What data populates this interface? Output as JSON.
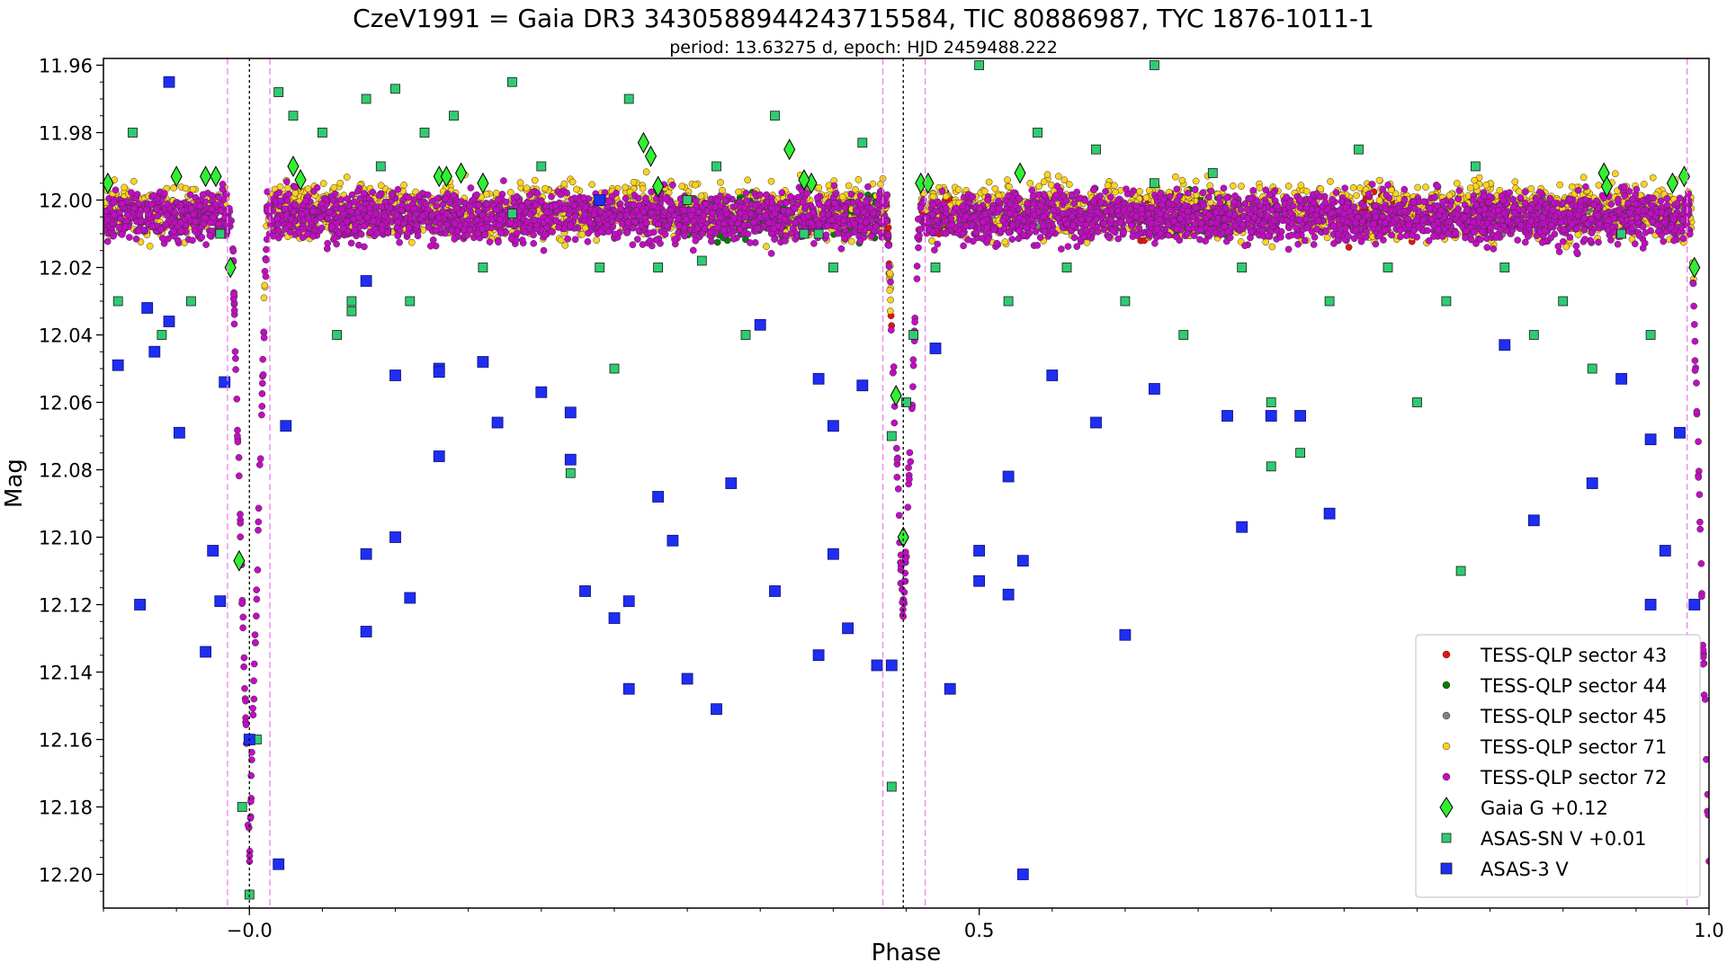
{
  "chart_data": {
    "type": "scatter",
    "title": "CzeV1991 = Gaia DR3 3430588944243715584, TIC 80886987, TYC 1876-1011-1",
    "subtitle": "period: 13.63275 d, epoch: HJD 2459488.222",
    "xlabel": "Phase",
    "ylabel": "Mag",
    "xlim": [
      -0.1,
      1.0
    ],
    "ylim": [
      12.21,
      11.958
    ],
    "y_inverted": true,
    "xticks": [
      -0.0,
      0.5,
      1.0
    ],
    "xtick_labels": [
      "−0.0",
      "0.5",
      "1.0"
    ],
    "yticks": [
      11.96,
      11.98,
      12.0,
      12.02,
      12.04,
      12.06,
      12.08,
      12.1,
      12.12,
      12.14,
      12.16,
      12.18,
      12.2
    ],
    "ytick_labels": [
      "11.96",
      "11.98",
      "12.00",
      "12.02",
      "12.04",
      "12.06",
      "12.08",
      "12.10",
      "12.12",
      "12.14",
      "12.16",
      "12.18",
      "12.20"
    ],
    "grid": false,
    "legend_position": "lower-right",
    "vertical_lines": [
      {
        "x": -0.015,
        "style": "dashed",
        "color": "#ee82ee"
      },
      {
        "x": 0.0,
        "style": "dotted",
        "color": "#000000"
      },
      {
        "x": 0.014,
        "style": "dashed",
        "color": "#ee82ee"
      },
      {
        "x": 0.434,
        "style": "dashed",
        "color": "#ee82ee"
      },
      {
        "x": 0.448,
        "style": "dotted",
        "color": "#000000"
      },
      {
        "x": 0.463,
        "style": "dashed",
        "color": "#ee82ee"
      },
      {
        "x": 0.985,
        "style": "dashed",
        "color": "#ee82ee"
      }
    ],
    "light_curve_model": {
      "base_mag": 12.005,
      "primary_eclipse": {
        "phase": 0.0,
        "depth": 0.19,
        "half_width": 0.012
      },
      "secondary_eclipse": {
        "phase": 0.448,
        "depth": 0.118,
        "half_width": 0.011
      }
    },
    "series": [
      {
        "name": "TESS-QLP sector 43",
        "marker": "circle",
        "color": "#e8120c",
        "phase_ranges": [
          [
            0.43,
            0.44
          ],
          [
            0.46,
            0.48
          ],
          [
            0.61,
            0.65
          ],
          [
            0.75,
            0.8
          ],
          [
            0.83,
            0.86
          ]
        ],
        "scatter": 0.006
      },
      {
        "name": "TESS-QLP sector 44",
        "marker": "circle",
        "color": "#0a7a0a",
        "phase_ranges": [
          [
            0.3,
            0.37
          ],
          [
            0.4,
            0.43
          ],
          [
            0.63,
            0.67
          ]
        ],
        "scatter": 0.006
      },
      {
        "name": "TESS-QLP sector 45",
        "marker": "circle",
        "color": "#808080",
        "phase_ranges": [
          [
            0.47,
            0.58
          ],
          [
            0.84,
            0.92
          ]
        ],
        "scatter": 0.005
      },
      {
        "name": "TESS-QLP sector 71",
        "marker": "circle",
        "color": "#ffd21f",
        "phase_ranges": [
          [
            -0.1,
            -0.015
          ],
          [
            0.01,
            0.44
          ],
          [
            0.46,
            0.99
          ]
        ],
        "scatter": 0.008
      },
      {
        "name": "TESS-QLP sector 72",
        "marker": "circle",
        "color": "#c20dc2",
        "phase_ranges": [
          [
            -0.1,
            1.0
          ]
        ],
        "scatter": 0.007
      },
      {
        "name": "Gaia G +0.12",
        "marker": "diamond",
        "color": "#33ee33",
        "x": [
          -0.097,
          -0.05,
          -0.03,
          -0.023,
          -0.013,
          -0.007,
          0.03,
          0.035,
          0.13,
          0.135,
          0.145,
          0.16,
          0.27,
          0.275,
          0.28,
          0.37,
          0.385,
          0.38,
          0.443,
          0.46,
          0.465,
          0.448,
          0.528,
          0.928,
          0.93,
          0.975,
          0.983,
          0.99
        ],
        "y": [
          11.995,
          11.993,
          11.993,
          11.993,
          12.02,
          12.107,
          11.99,
          11.994,
          11.993,
          11.993,
          11.992,
          11.995,
          11.983,
          11.987,
          11.996,
          11.985,
          11.995,
          11.994,
          12.058,
          11.995,
          11.995,
          12.1,
          11.992,
          11.992,
          11.996,
          11.995,
          11.993,
          12.02
        ]
      },
      {
        "name": "ASAS-SN V +0.01",
        "marker": "square",
        "color": "#2ecc71",
        "x": [
          -0.08,
          -0.06,
          -0.04,
          -0.02,
          0.02,
          0.03,
          0.05,
          0.06,
          0.07,
          0.08,
          0.09,
          0.1,
          0.11,
          0.12,
          0.14,
          0.16,
          0.18,
          0.2,
          0.22,
          0.24,
          0.25,
          0.26,
          0.28,
          0.3,
          0.31,
          0.32,
          0.34,
          0.36,
          0.38,
          0.4,
          0.42,
          0.44,
          0.47,
          0.5,
          0.52,
          0.54,
          0.56,
          0.58,
          0.6,
          0.62,
          0.64,
          0.66,
          0.68,
          0.7,
          0.72,
          0.74,
          0.76,
          0.78,
          0.8,
          0.82,
          0.84,
          0.86,
          0.88,
          0.9,
          0.92,
          0.94,
          0.96,
          -0.09,
          0.0,
          -0.005,
          0.005,
          0.44,
          0.45,
          0.455,
          0.07,
          0.18,
          0.39,
          0.62,
          0.7,
          0.83
        ],
        "y": [
          11.98,
          12.04,
          12.03,
          12.01,
          11.968,
          11.975,
          11.98,
          12.04,
          12.03,
          11.97,
          11.99,
          11.967,
          12.03,
          11.98,
          11.975,
          12.02,
          11.965,
          11.99,
          12.081,
          12.02,
          12.05,
          11.97,
          12.02,
          12.0,
          12.018,
          11.99,
          12.04,
          11.975,
          12.01,
          12.02,
          11.983,
          12.174,
          12.02,
          11.96,
          12.03,
          11.98,
          12.02,
          11.985,
          12.03,
          11.96,
          12.04,
          11.992,
          12.02,
          12.06,
          12.075,
          12.03,
          11.985,
          12.02,
          12.06,
          12.03,
          11.99,
          12.02,
          12.04,
          12.03,
          12.05,
          12.01,
          12.04,
          12.03,
          12.206,
          12.18,
          12.16,
          12.07,
          12.06,
          12.04,
          12.033,
          12.004,
          12.01,
          11.995,
          12.079,
          12.11
        ]
      },
      {
        "name": "ASAS-3 V",
        "marker": "square",
        "color": "#1e2ef2",
        "x": [
          -0.055,
          -0.09,
          -0.075,
          -0.065,
          -0.07,
          -0.055,
          -0.048,
          -0.03,
          -0.025,
          -0.017,
          -0.02,
          0.025,
          0.02,
          0.08,
          0.08,
          0.08,
          0.1,
          0.1,
          0.11,
          0.13,
          0.13,
          0.13,
          0.16,
          0.17,
          0.2,
          0.22,
          0.22,
          0.23,
          0.24,
          0.25,
          0.26,
          0.26,
          0.28,
          0.29,
          0.3,
          0.32,
          0.33,
          0.35,
          0.36,
          0.39,
          0.39,
          0.4,
          0.4,
          0.41,
          0.42,
          0.43,
          0.47,
          0.48,
          0.5,
          0.5,
          0.52,
          0.52,
          0.53,
          0.55,
          0.58,
          0.6,
          0.62,
          0.67,
          0.68,
          0.7,
          0.72,
          0.74,
          0.86,
          0.88,
          0.92,
          0.94,
          0.96,
          0.96,
          0.97,
          0.98,
          0.99,
          0.0,
          0.44,
          0.53
        ],
        "y": [
          11.965,
          12.049,
          12.12,
          12.045,
          12.032,
          12.036,
          12.069,
          12.134,
          12.104,
          12.054,
          12.119,
          12.067,
          12.197,
          12.024,
          12.105,
          12.128,
          12.052,
          12.1,
          12.118,
          12.05,
          12.076,
          12.051,
          12.048,
          12.066,
          12.057,
          12.077,
          12.063,
          12.116,
          12.0,
          12.124,
          12.119,
          12.145,
          12.088,
          12.101,
          12.142,
          12.151,
          12.084,
          12.037,
          12.116,
          12.135,
          12.053,
          12.067,
          12.105,
          12.127,
          12.055,
          12.138,
          12.044,
          12.145,
          12.104,
          12.113,
          12.117,
          12.082,
          12.107,
          12.052,
          12.066,
          12.129,
          12.056,
          12.064,
          12.097,
          12.064,
          12.064,
          12.093,
          12.043,
          12.095,
          12.084,
          12.053,
          12.12,
          12.071,
          12.104,
          12.069,
          12.12,
          12.16,
          12.138,
          12.2
        ]
      }
    ]
  }
}
